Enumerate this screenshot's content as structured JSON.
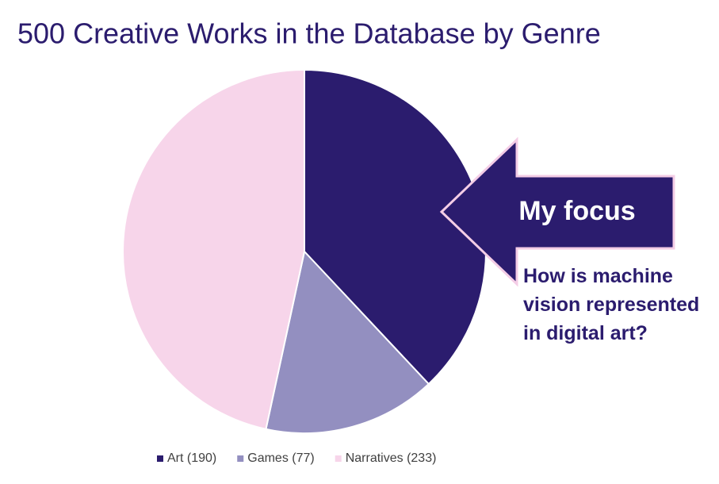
{
  "chart_data": {
    "type": "pie",
    "title": "500 Creative Works in the Database by Genre",
    "categories": [
      "Art (190)",
      "Games (77)",
      "Narratives (233)"
    ],
    "values": [
      190,
      77,
      233
    ],
    "colors": [
      "#2b1c6e",
      "#938fc0",
      "#f7d5ea"
    ],
    "legend": "bottom",
    "callout": {
      "title": "My focus",
      "text": "How is machine vision represented in digital art?"
    }
  }
}
